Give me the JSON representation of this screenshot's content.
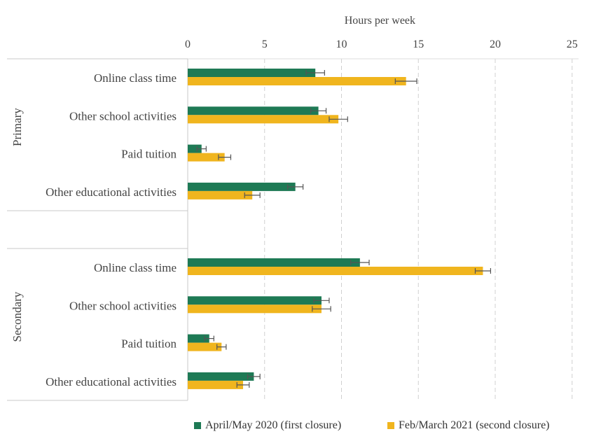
{
  "chart_data": {
    "type": "bar",
    "orientation": "horizontal",
    "xlabel": "Hours per week",
    "xlim": [
      0,
      25
    ],
    "xticks": [
      0,
      5,
      10,
      15,
      20,
      25
    ],
    "grid": "vertical dashed",
    "groups": [
      {
        "name": "Primary",
        "categories": [
          "Online class time",
          "Other school activities",
          "Paid tuition",
          "Other educational activities"
        ]
      },
      {
        "name": "Secondary",
        "categories": [
          "Online class time",
          "Other school activities",
          "Paid tuition",
          "Other educational activities"
        ]
      }
    ],
    "series": [
      {
        "name": "April/May 2020 (first closure)",
        "color": "#1e7a55",
        "values": [
          8.3,
          8.5,
          0.9,
          7.0,
          11.2,
          8.7,
          1.4,
          4.3
        ],
        "errors": [
          0.6,
          0.5,
          0.3,
          0.5,
          0.6,
          0.5,
          0.3,
          0.4
        ]
      },
      {
        "name": "Feb/March 2021 (second closure)",
        "color": "#f0b51e",
        "values": [
          14.2,
          9.8,
          2.4,
          4.2,
          19.2,
          8.7,
          2.2,
          3.6
        ],
        "errors": [
          0.7,
          0.6,
          0.4,
          0.5,
          0.5,
          0.6,
          0.3,
          0.4
        ]
      }
    ],
    "legend_position": "bottom"
  }
}
